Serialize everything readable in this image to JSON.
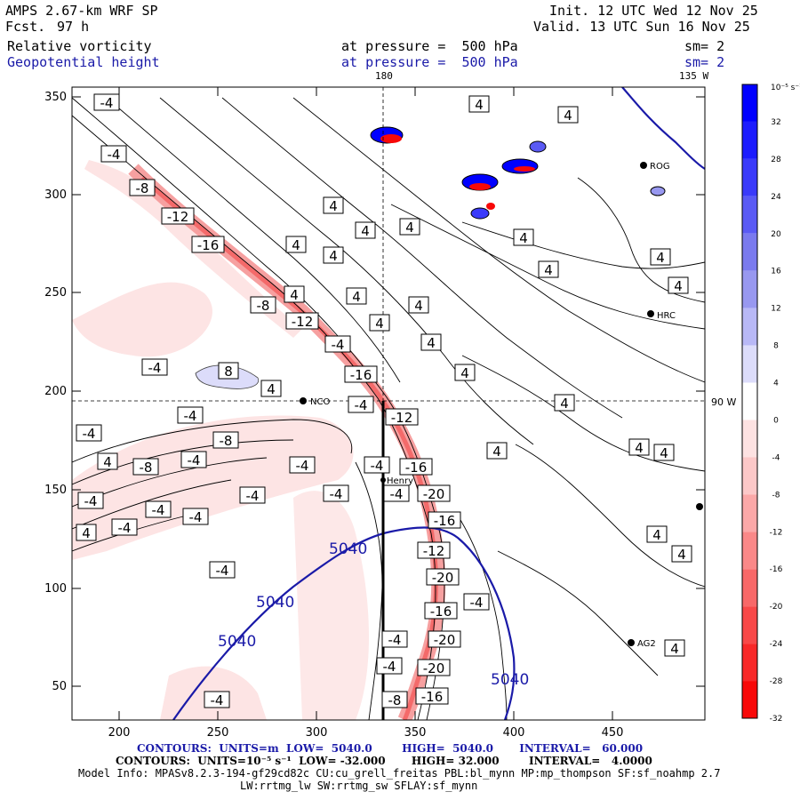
{
  "header": {
    "model": "AMPS 2.67-km WRF SP",
    "fcst_label": "Fcst.",
    "fcst_value": "97 h",
    "init": "Init. 12 UTC Wed 12 Nov 25",
    "valid": "Valid. 13 UTC Sun 16 Nov 25",
    "field1": "Relative vorticity",
    "field1_level": "at pressure =  500 hPa",
    "field1_sm": "sm= 2",
    "field2": "Geopotential height",
    "field2_level": "at pressure =  500 hPa",
    "field2_sm": "sm= 2"
  },
  "map": {
    "lon_180": "180",
    "lon_135w": "135 W",
    "lon_90w": "90 W",
    "stations": [
      "NCO",
      "HRC",
      "AG2",
      "ROG",
      "Henry"
    ],
    "x_ticks": [
      "200",
      "250",
      "300",
      "350",
      "400",
      "450"
    ],
    "y_ticks": [
      "350",
      "300",
      "250",
      "200",
      "150",
      "100",
      "50"
    ],
    "contour_5040": "5040",
    "vort_labels": {
      "neg4": "-4",
      "neg8": "-8",
      "neg12": "-12",
      "neg16": "-16",
      "neg20": "-20",
      "pos4": "4",
      "pos8": "8"
    }
  },
  "colorbar": {
    "unit": "10⁻⁵ s⁻¹",
    "labels": [
      "32",
      "28",
      "24",
      "20",
      "16",
      "12",
      "8",
      "4",
      "0",
      "-4",
      "-8",
      "-12",
      "-16",
      "-20",
      "-24",
      "-28",
      "-32"
    ],
    "colors": [
      "#0000ff",
      "#1c1cfe",
      "#3a3afa",
      "#5a5af4",
      "#7a7aee",
      "#9898f0",
      "#b8b8f6",
      "#dcdcfa",
      "#ffffff",
      "#fde2e2",
      "#fcc8c8",
      "#fba8a8",
      "#fa8888",
      "#f86868",
      "#f84848",
      "#f82828",
      "#f80808"
    ]
  },
  "footer": {
    "line1": "CONTOURS:  UNITS=m  LOW=  5040.0        HIGH=  5040.0       INTERVAL=   60.000",
    "line2": "CONTOURS:  UNITS=10⁻⁵ s⁻¹  LOW= -32.000       HIGH= 32.000        INTERVAL=   4.0000",
    "line3": "Model Info: MPASv8.2.3-194-gf29cd82c CU:cu_grell_freitas PBL:bl_mynn MP:mp_thompson SF:sf_noahmp 2.7",
    "line4": "LW:rrtmg_lw SW:rrtmg_sw SFLAY:sf_mynn"
  }
}
